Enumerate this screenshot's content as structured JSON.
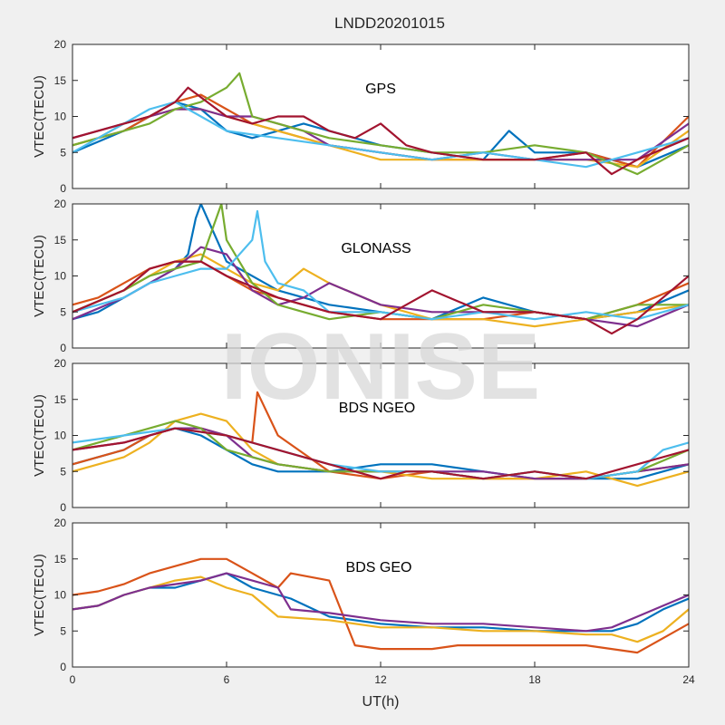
{
  "figure": {
    "title": "LNDD20201015",
    "watermark": "IONISE"
  },
  "chart_data": [
    {
      "type": "line",
      "panel_label": "GPS",
      "xlabel": "",
      "ylabel": "VTEC(TECU)",
      "xlim": [
        0,
        24
      ],
      "ylim": [
        0,
        20
      ],
      "xticks": [
        0,
        6,
        12,
        18,
        24
      ],
      "yticks": [
        0,
        5,
        10,
        15,
        20
      ],
      "series": [
        {
          "color": "#0072BD",
          "x": [
            0,
            2,
            3,
            4,
            5,
            6,
            7,
            8,
            9,
            10,
            12,
            14,
            16,
            17,
            18,
            20,
            22,
            24
          ],
          "y": [
            5,
            8,
            10,
            12,
            11,
            8,
            7,
            8,
            9,
            8,
            6,
            5,
            4,
            8,
            5,
            5,
            3,
            6
          ]
        },
        {
          "color": "#D95319",
          "x": [
            0,
            1,
            2,
            3,
            4,
            5,
            6,
            7,
            8,
            9,
            10,
            12,
            14,
            16,
            18,
            20,
            22,
            24
          ],
          "y": [
            6,
            7,
            8,
            10,
            12,
            13,
            11,
            9,
            8,
            7,
            6,
            5,
            4,
            4,
            4,
            5,
            3,
            10
          ]
        },
        {
          "color": "#EDB120",
          "x": [
            0,
            1,
            2,
            3,
            4,
            5,
            6,
            7,
            8,
            10,
            12,
            14,
            16,
            18,
            20,
            22,
            24
          ],
          "y": [
            6,
            7,
            9,
            10,
            11,
            11,
            10,
            9,
            8,
            6,
            4,
            4,
            4,
            4,
            4,
            3,
            8
          ]
        },
        {
          "color": "#7E2F8E",
          "x": [
            0,
            2,
            3,
            4,
            5,
            6,
            7,
            8,
            9,
            10,
            12,
            14,
            16,
            18,
            20,
            22,
            24
          ],
          "y": [
            7,
            9,
            10,
            11,
            11,
            10,
            10,
            9,
            8,
            6,
            5,
            4,
            5,
            4,
            4,
            4,
            9
          ]
        },
        {
          "color": "#77AC30",
          "x": [
            0,
            2,
            3,
            4,
            5,
            6,
            6.5,
            7,
            8,
            9,
            10,
            12,
            14,
            16,
            18,
            20,
            22,
            24
          ],
          "y": [
            6,
            8,
            9,
            11,
            12,
            14,
            16,
            10,
            9,
            8,
            7,
            6,
            5,
            5,
            6,
            5,
            2,
            6
          ]
        },
        {
          "color": "#4DBEEE",
          "x": [
            0,
            1,
            2,
            3,
            4,
            5,
            6,
            8,
            10,
            12,
            14,
            16,
            18,
            20,
            22,
            24
          ],
          "y": [
            5,
            7,
            9,
            11,
            12,
            10,
            8,
            7,
            6,
            5,
            4,
            5,
            4,
            3,
            5,
            7
          ]
        },
        {
          "color": "#A2142F",
          "x": [
            0,
            2,
            3,
            4,
            4.5,
            6,
            7,
            8,
            9,
            10,
            11,
            12,
            13,
            14,
            16,
            18,
            20,
            21,
            22,
            24
          ],
          "y": [
            7,
            9,
            10,
            12,
            14,
            10,
            9,
            10,
            10,
            8,
            7,
            9,
            6,
            5,
            4,
            4,
            5,
            2,
            4,
            7
          ]
        }
      ]
    },
    {
      "type": "line",
      "panel_label": "GLONASS",
      "xlabel": "",
      "ylabel": "VTEC(TECU)",
      "xlim": [
        0,
        24
      ],
      "ylim": [
        0,
        20
      ],
      "xticks": [
        0,
        6,
        12,
        18,
        24
      ],
      "yticks": [
        0,
        5,
        10,
        15,
        20
      ],
      "series": [
        {
          "color": "#0072BD",
          "x": [
            0,
            1,
            2,
            3,
            4,
            4.5,
            4.8,
            5,
            6,
            8,
            10,
            12,
            14,
            16,
            18,
            20,
            22,
            24
          ],
          "y": [
            4,
            5,
            7,
            9,
            11,
            13,
            18,
            20,
            12,
            8,
            6,
            5,
            4,
            7,
            5,
            4,
            5,
            8
          ]
        },
        {
          "color": "#D95319",
          "x": [
            0,
            1,
            2,
            3,
            4,
            5,
            6,
            7,
            8,
            10,
            12,
            14,
            16,
            18,
            20,
            22,
            24
          ],
          "y": [
            6,
            7,
            9,
            11,
            12,
            12,
            10,
            8,
            7,
            5,
            4,
            4,
            4,
            5,
            4,
            6,
            9
          ]
        },
        {
          "color": "#EDB120",
          "x": [
            0,
            2,
            3,
            4,
            5,
            6,
            7,
            8,
            9,
            10,
            12,
            14,
            16,
            18,
            20,
            22,
            24
          ],
          "y": [
            5,
            8,
            10,
            12,
            13,
            11,
            9,
            8,
            11,
            9,
            6,
            4,
            4,
            3,
            4,
            5,
            6
          ]
        },
        {
          "color": "#7E2F8E",
          "x": [
            0,
            2,
            3,
            4,
            5,
            6,
            7,
            8,
            9,
            10,
            12,
            14,
            16,
            18,
            20,
            22,
            24
          ],
          "y": [
            4,
            7,
            9,
            11,
            14,
            13,
            8,
            6,
            7,
            9,
            6,
            5,
            5,
            5,
            4,
            3,
            6
          ]
        },
        {
          "color": "#77AC30",
          "x": [
            0,
            2,
            3,
            4,
            5,
            5.8,
            6,
            7,
            8,
            9,
            10,
            12,
            14,
            16,
            18,
            20,
            22,
            24
          ],
          "y": [
            5,
            8,
            10,
            11,
            12,
            20,
            15,
            9,
            6,
            5,
            4,
            5,
            4,
            6,
            5,
            4,
            6,
            6
          ]
        },
        {
          "color": "#4DBEEE",
          "x": [
            0,
            2,
            3,
            4,
            5,
            6,
            7,
            7.2,
            7.5,
            8,
            9,
            10,
            12,
            14,
            16,
            18,
            20,
            22,
            24
          ],
          "y": [
            5,
            7,
            9,
            10,
            11,
            11,
            15,
            19,
            12,
            9,
            8,
            5,
            5,
            4,
            5,
            4,
            5,
            4,
            6
          ]
        },
        {
          "color": "#A2142F",
          "x": [
            0,
            2,
            3,
            4,
            5,
            6,
            8,
            10,
            12,
            13,
            14,
            16,
            18,
            20,
            21,
            22,
            24
          ],
          "y": [
            5,
            8,
            11,
            12,
            12,
            10,
            7,
            5,
            4,
            6,
            8,
            5,
            5,
            4,
            2,
            4,
            10
          ]
        }
      ]
    },
    {
      "type": "line",
      "panel_label": "BDS NGEO",
      "xlabel": "",
      "ylabel": "VTEC(TECU)",
      "xlim": [
        0,
        24
      ],
      "ylim": [
        0,
        20
      ],
      "xticks": [
        0,
        6,
        12,
        18,
        24
      ],
      "yticks": [
        0,
        5,
        10,
        15,
        20
      ],
      "series": [
        {
          "color": "#0072BD",
          "x": [
            0,
            2,
            3,
            4,
            5,
            6,
            7,
            8,
            10,
            12,
            14,
            16,
            18,
            20,
            22,
            24
          ],
          "y": [
            6,
            8,
            10,
            11,
            10,
            8,
            6,
            5,
            5,
            6,
            6,
            5,
            4,
            4,
            4,
            6
          ]
        },
        {
          "color": "#D95319",
          "x": [
            0,
            2,
            3,
            4,
            5,
            6,
            7,
            7.2,
            8,
            10,
            12,
            14,
            16,
            18,
            20,
            22,
            24
          ],
          "y": [
            6,
            8,
            10,
            11,
            11,
            10,
            9,
            16,
            10,
            5,
            4,
            5,
            4,
            4,
            4,
            5,
            6
          ]
        },
        {
          "color": "#EDB120",
          "x": [
            0,
            2,
            3,
            4,
            5,
            6,
            7,
            8,
            10,
            12,
            14,
            16,
            18,
            20,
            22,
            24
          ],
          "y": [
            5,
            7,
            9,
            12,
            13,
            12,
            8,
            6,
            5,
            5,
            4,
            4,
            4,
            5,
            3,
            5
          ]
        },
        {
          "color": "#7E2F8E",
          "x": [
            0,
            2,
            3,
            4,
            5,
            6,
            7,
            8,
            10,
            12,
            14,
            16,
            18,
            20,
            22,
            24
          ],
          "y": [
            8,
            9,
            10,
            11,
            11,
            10,
            7,
            6,
            5,
            5,
            5,
            5,
            4,
            4,
            5,
            6
          ]
        },
        {
          "color": "#77AC30",
          "x": [
            0,
            1,
            2,
            3,
            4,
            5,
            6,
            8,
            10,
            12,
            14,
            16,
            18,
            20,
            22,
            24
          ],
          "y": [
            8,
            9,
            10,
            11,
            12,
            11,
            8,
            6,
            5,
            5,
            5,
            4,
            5,
            4,
            5,
            8
          ]
        },
        {
          "color": "#4DBEEE",
          "x": [
            0,
            2,
            4,
            6,
            8,
            10,
            12,
            14,
            16,
            18,
            20,
            22,
            23,
            24
          ],
          "y": [
            9,
            10,
            11,
            10,
            8,
            6,
            5,
            5,
            4,
            5,
            4,
            5,
            8,
            9
          ]
        },
        {
          "color": "#A2142F",
          "x": [
            0,
            2,
            4,
            6,
            8,
            10,
            12,
            13,
            14,
            16,
            18,
            20,
            22,
            24
          ],
          "y": [
            8,
            9,
            11,
            10,
            8,
            6,
            4,
            5,
            5,
            4,
            5,
            4,
            6,
            8
          ]
        }
      ]
    },
    {
      "type": "line",
      "panel_label": "BDS GEO",
      "xlabel": "UT(h)",
      "ylabel": "VTEC(TECU)",
      "xlim": [
        0,
        24
      ],
      "ylim": [
        0,
        20
      ],
      "xticks": [
        0,
        6,
        12,
        18,
        24
      ],
      "yticks": [
        0,
        5,
        10,
        15,
        20
      ],
      "series": [
        {
          "color": "#0072BD",
          "x": [
            0,
            1,
            2,
            3,
            4,
            5,
            6,
            7,
            8,
            8.5,
            10,
            12,
            14,
            16,
            18,
            20,
            21,
            22,
            23,
            24
          ],
          "y": [
            8,
            8.5,
            10,
            11,
            11,
            12,
            13,
            11,
            10,
            9.5,
            7,
            6,
            5.5,
            5.5,
            5,
            5,
            5,
            6,
            8,
            9.5
          ]
        },
        {
          "color": "#D95319",
          "x": [
            0,
            1,
            2,
            3,
            4,
            5,
            6,
            7,
            8,
            8.5,
            10,
            11,
            12,
            14,
            15,
            16,
            18,
            20,
            21,
            22,
            23,
            24
          ],
          "y": [
            10,
            10.5,
            11.5,
            13,
            14,
            15,
            15,
            13,
            11,
            13,
            12,
            3,
            2.5,
            2.5,
            3,
            3,
            3,
            3,
            2.5,
            2,
            4,
            6
          ]
        },
        {
          "color": "#EDB120",
          "x": [
            0,
            1,
            2,
            3,
            4,
            5,
            6,
            7,
            8,
            10,
            12,
            14,
            16,
            18,
            20,
            21,
            22,
            23,
            24
          ],
          "y": [
            8,
            8.5,
            10,
            11,
            12,
            12.5,
            11,
            10,
            7,
            6.5,
            5.5,
            5.5,
            5,
            5,
            4.5,
            4.5,
            3.5,
            5,
            8
          ]
        },
        {
          "color": "#7E2F8E",
          "x": [
            0,
            1,
            2,
            3,
            4,
            5,
            6,
            7,
            8,
            8.5,
            10,
            12,
            14,
            16,
            18,
            20,
            21,
            22,
            23,
            24
          ],
          "y": [
            8,
            8.5,
            10,
            11,
            11.5,
            12,
            13,
            12,
            11,
            8,
            7.5,
            6.5,
            6,
            6,
            5.5,
            5,
            5.5,
            7,
            8.5,
            10
          ]
        }
      ]
    }
  ]
}
